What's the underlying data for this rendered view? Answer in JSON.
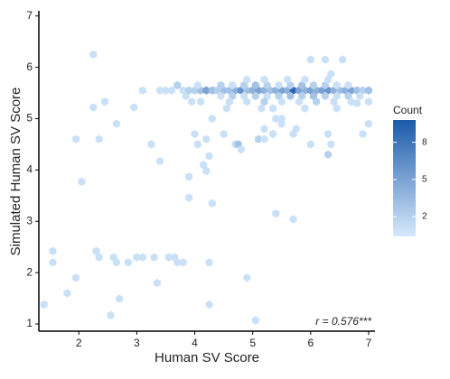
{
  "chart_data": {
    "type": "hexbin",
    "x_label": "Human SV Score",
    "y_label": "Simulated Human SV Score",
    "annotation": "r = 0.576***",
    "legend_title": "Count",
    "xlim": [
      1.31,
      7.11
    ],
    "xticks": [
      2,
      3,
      4,
      5,
      6,
      7
    ],
    "ylim": [
      0.86,
      7.1
    ],
    "yticks": [
      1,
      2,
      3,
      4,
      5,
      6,
      7
    ],
    "clim": [
      0.4,
      9.8
    ],
    "colorbar_ticks": [
      2,
      5,
      8
    ],
    "color_low": "#d6e9fc",
    "color_high": "#1a5aa8",
    "x": [
      1.4,
      1.55,
      1.55,
      1.8,
      1.95,
      1.95,
      2.05,
      2.25,
      2.25,
      2.3,
      2.35,
      2.35,
      2.45,
      2.55,
      2.6,
      2.65,
      2.65,
      2.7,
      2.85,
      2.95,
      3.0,
      3.1,
      3.1,
      3.25,
      3.3,
      3.35,
      3.4,
      3.4,
      3.5,
      3.55,
      3.6,
      3.65,
      3.7,
      3.7,
      3.8,
      3.85,
      3.9,
      3.9,
      3.95,
      4.0,
      4.05,
      4.1,
      4.15,
      4.2,
      4.2,
      4.25,
      4.25,
      4.25,
      4.3,
      4.3,
      4.35,
      4.9,
      5.05,
      5.4,
      5.7,
      3.8,
      3.9,
      4.0,
      4.1,
      4.2,
      4.3,
      4.4,
      4.5,
      4.6,
      4.7,
      4.8,
      4.9,
      5.0,
      5.1,
      5.2,
      5.3,
      5.4,
      5.5,
      5.6,
      5.7,
      5.8,
      5.9,
      6.0,
      6.1,
      6.2,
      6.3,
      6.4,
      6.5,
      6.6,
      6.7,
      6.8,
      6.9,
      7.0,
      4.45,
      4.65,
      4.85,
      5.05,
      5.25,
      5.45,
      5.65,
      5.85,
      6.05,
      6.25,
      6.45,
      6.65,
      6.85,
      4.05,
      4.45,
      4.65,
      4.85,
      5.05,
      5.25,
      5.45,
      5.65,
      5.85,
      6.05,
      6.25,
      6.45,
      6.65,
      4.6,
      4.9,
      5.2,
      5.5,
      5.8,
      6.1,
      6.4,
      6.7,
      4.9,
      5.2,
      5.6,
      5.9,
      6.3,
      4.55,
      5.15,
      5.35,
      5.9,
      6.45,
      4.5,
      4.7,
      4.75,
      4.8,
      5.1,
      5.2,
      5.2,
      5.4,
      5.35,
      5.5,
      5.7,
      5.75,
      6.0,
      6.3,
      6.3,
      6.35,
      6.9,
      7.0,
      6.0,
      6.25,
      6.55,
      6.35,
      5.5,
      6.8,
      7.0
    ],
    "y": [
      1.38,
      2.42,
      2.2,
      1.6,
      1.9,
      4.6,
      3.77,
      6.25,
      5.22,
      2.42,
      2.3,
      4.6,
      5.33,
      1.17,
      2.3,
      2.2,
      4.9,
      1.49,
      2.2,
      5.22,
      2.3,
      2.3,
      5.55,
      4.5,
      2.3,
      1.8,
      4.17,
      5.55,
      5.55,
      2.3,
      5.55,
      2.3,
      5.65,
      2.2,
      2.2,
      5.44,
      3.87,
      3.46,
      5.33,
      4.7,
      4.5,
      5.33,
      4.1,
      3.98,
      4.6,
      1.38,
      2.2,
      4.27,
      3.35,
      5.0,
      5.55,
      1.9,
      1.07,
      3.15,
      3.04,
      5.55,
      5.55,
      5.55,
      5.55,
      5.55,
      5.55,
      5.55,
      5.55,
      5.55,
      5.55,
      5.55,
      5.55,
      5.55,
      5.55,
      5.55,
      5.55,
      5.55,
      5.55,
      5.55,
      5.55,
      5.55,
      5.55,
      5.55,
      5.55,
      5.55,
      5.55,
      5.55,
      5.55,
      5.55,
      5.55,
      5.55,
      5.55,
      5.55,
      5.44,
      5.44,
      5.44,
      5.44,
      5.44,
      5.44,
      5.44,
      5.44,
      5.44,
      5.44,
      5.44,
      5.44,
      5.44,
      5.65,
      5.65,
      5.65,
      5.65,
      5.65,
      5.65,
      5.65,
      5.65,
      5.65,
      5.65,
      5.65,
      5.65,
      5.65,
      5.33,
      5.33,
      5.33,
      5.33,
      5.33,
      5.33,
      5.33,
      5.33,
      5.76,
      5.76,
      5.76,
      5.76,
      5.76,
      5.2,
      5.2,
      5.2,
      5.2,
      5.2,
      4.7,
      4.5,
      4.5,
      4.4,
      4.6,
      4.6,
      4.8,
      5.0,
      4.7,
      4.9,
      4.7,
      4.8,
      4.5,
      4.7,
      4.3,
      4.5,
      4.7,
      4.9,
      6.15,
      6.15,
      6.15,
      5.87,
      5.0,
      5.3,
      5.33
    ],
    "values": [
      1,
      1,
      1,
      1,
      1,
      1,
      1,
      1,
      1,
      1,
      1,
      1,
      1,
      1,
      1,
      1,
      1,
      1,
      1,
      1,
      1,
      1,
      1,
      1,
      1,
      1,
      1,
      1,
      1,
      1,
      1,
      1,
      2,
      1,
      1,
      1,
      1,
      1,
      1,
      1,
      1,
      1,
      1,
      1,
      1,
      1,
      1,
      1,
      1,
      1,
      1,
      1,
      1,
      1,
      1,
      1,
      2,
      2,
      3,
      5,
      3,
      2,
      3,
      3,
      4,
      6,
      3,
      4,
      5,
      4,
      3,
      4,
      5,
      4,
      9,
      5,
      4,
      5,
      4,
      5,
      6,
      4,
      3,
      4,
      5,
      3,
      2,
      3,
      1,
      2,
      1,
      2,
      1,
      2,
      3,
      2,
      3,
      2,
      1,
      2,
      1,
      1,
      2,
      1,
      2,
      3,
      2,
      1,
      2,
      3,
      2,
      2,
      1,
      1,
      1,
      1,
      2,
      1,
      1,
      2,
      1,
      1,
      1,
      1,
      1,
      1,
      1,
      1,
      1,
      1,
      1,
      1,
      1,
      1,
      3,
      1,
      2,
      1,
      1,
      1,
      1,
      1,
      1,
      1,
      1,
      1,
      2,
      1,
      1,
      1,
      1,
      1,
      1,
      1,
      1,
      1,
      1
    ]
  }
}
